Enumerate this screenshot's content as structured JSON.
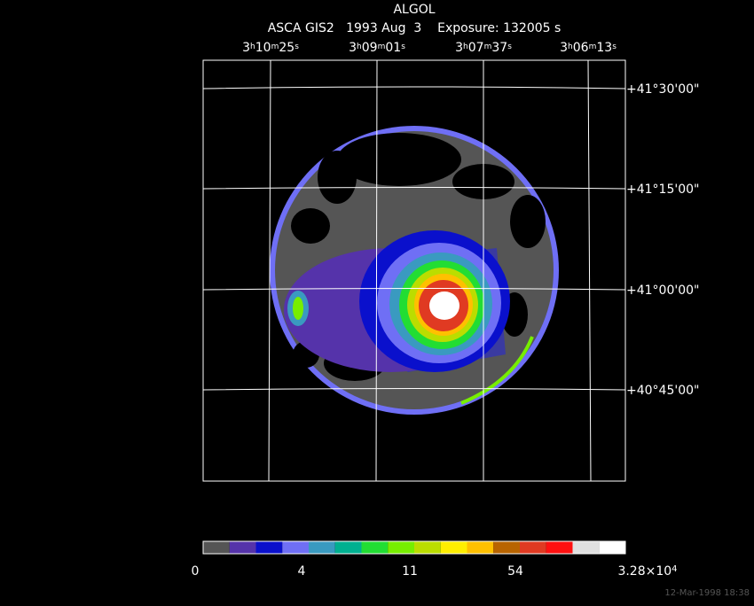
{
  "title": "ALGOL",
  "subtitle": "ASCA GIS2   1993 Aug  3    Exposure: 132005 s",
  "ra_labels": [
    [
      "3",
      "h",
      "10",
      "m",
      "25",
      "s"
    ],
    [
      "3",
      "h",
      "09",
      "m",
      "01",
      "s"
    ],
    [
      "3",
      "h",
      "07",
      "m",
      "37",
      "s"
    ],
    [
      "3",
      "h",
      "06",
      "m",
      "13",
      "s"
    ]
  ],
  "dec_labels": [
    "+41°30'00\"",
    "+41°15'00\"",
    "+41°00'00\"",
    "+40°45'00\""
  ],
  "colorbar": {
    "colors": [
      "#555555",
      "#5533aa",
      "#0a10cc",
      "#6f6ff5",
      "#3a9ac0",
      "#00b090",
      "#22dd33",
      "#77ee00",
      "#bbdd00",
      "#ffee00",
      "#ffc000",
      "#b86400",
      "#e03a22",
      "#ff1010",
      "#e0e0e0",
      "#ffffff"
    ],
    "labels": [
      "0",
      "4",
      "11",
      "54",
      [
        "3.28×10",
        "4"
      ]
    ]
  },
  "footer": "12-Mar-1998 18:38"
}
